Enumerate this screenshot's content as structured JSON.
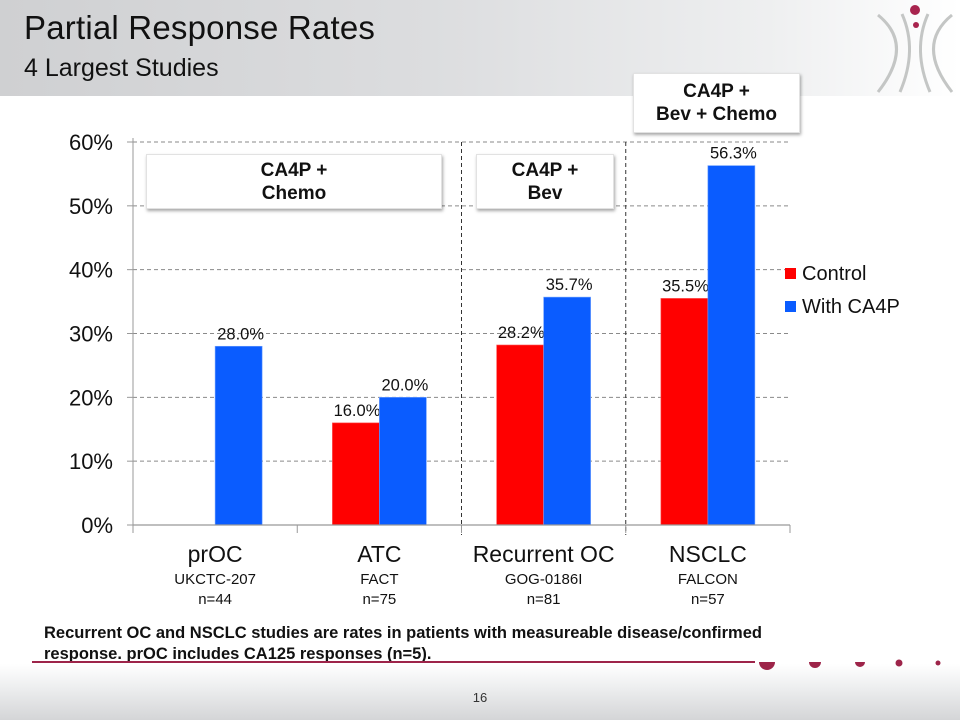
{
  "header": {
    "title": "Partial Response Rates",
    "subtitle": "4 Largest Studies"
  },
  "logo": {
    "icon": "company-logo-icon",
    "accent_color": "#a8244e",
    "arc_color": "#c4c6c5"
  },
  "callouts": [
    {
      "line1": "CA4P +",
      "line2": "Chemo"
    },
    {
      "line1": "CA4P +",
      "line2": "Bev"
    },
    {
      "line1": "CA4P +",
      "line2": "Bev + Chemo"
    }
  ],
  "chart_data": {
    "type": "bar",
    "title": "Partial Response Rates",
    "subtitle": "4 Largest Studies",
    "xlabel": "",
    "ylabel": "",
    "ylim": [
      0,
      60
    ],
    "yticks": [
      0,
      10,
      20,
      30,
      40,
      50,
      60
    ],
    "ytick_labels": [
      "0%",
      "10%",
      "20%",
      "30%",
      "40%",
      "50%",
      "60%"
    ],
    "grid": true,
    "legend_position": "right",
    "categories": [
      "prOC",
      "ATC",
      "Recurrent OC",
      "NSCLC"
    ],
    "category_sublabels": [
      {
        "study": "UKCTC-207",
        "n": "n=44"
      },
      {
        "study": "FACT",
        "n": "n=75"
      },
      {
        "study": "GOG-0186I",
        "n": "n=81"
      },
      {
        "study": "FALCON",
        "n": "n=57"
      }
    ],
    "series": [
      {
        "name": "Control",
        "color": "#ff0000",
        "values": [
          null,
          16.0,
          28.2,
          35.5
        ],
        "labels": [
          "",
          "16.0%",
          "28.2%",
          "35.5%"
        ]
      },
      {
        "name": "With CA4P",
        "color": "#0a5cff",
        "values": [
          28.0,
          20.0,
          35.7,
          56.3
        ],
        "labels": [
          "28.0%",
          "20.0%",
          "35.7%",
          "56.3%"
        ]
      }
    ],
    "group_separators_after_category": [
      1,
      2
    ]
  },
  "footnote": {
    "line1": "Recurrent OC and NSCLC studies are rates in patients with measureable disease/confirmed",
    "line2": "response.  prOC includes CA125 responses (n=5)."
  },
  "footer": {
    "page_number": "16",
    "accent_color": "#9d2449"
  }
}
